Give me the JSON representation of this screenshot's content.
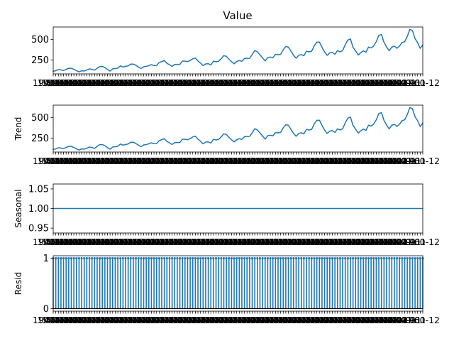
{
  "chart_data": [
    {
      "type": "line",
      "title": "Value",
      "ylabel": "",
      "xlabel": "",
      "x_start": "1949-01",
      "x_end": "1960-12",
      "x_frequency": "monthly",
      "x_tick_labels_note": "dense overlapping date tick labels, one per month",
      "y_ticks": [
        250,
        500
      ],
      "ylim": [
        80,
        650
      ],
      "series": [
        {
          "values": [
            112,
            118,
            132,
            129,
            121,
            135,
            148,
            148,
            136,
            119,
            104,
            118,
            115,
            126,
            141,
            135,
            125,
            149,
            170,
            170,
            158,
            133,
            114,
            140,
            145,
            150,
            178,
            163,
            172,
            178,
            199,
            199,
            184,
            162,
            146,
            166,
            171,
            180,
            193,
            181,
            183,
            218,
            230,
            242,
            209,
            191,
            172,
            194,
            196,
            196,
            236,
            235,
            229,
            243,
            264,
            272,
            237,
            211,
            180,
            201,
            204,
            188,
            235,
            227,
            234,
            264,
            302,
            293,
            259,
            229,
            203,
            229,
            242,
            233,
            267,
            269,
            270,
            315,
            364,
            347,
            312,
            274,
            237,
            278,
            284,
            277,
            317,
            313,
            318,
            374,
            413,
            405,
            355,
            306,
            271,
            306,
            315,
            301,
            356,
            348,
            355,
            422,
            465,
            467,
            404,
            347,
            305,
            336,
            340,
            318,
            362,
            348,
            363,
            435,
            491,
            505,
            404,
            359,
            310,
            337,
            360,
            342,
            406,
            396,
            420,
            472,
            548,
            559,
            463,
            407,
            362,
            405,
            417,
            391,
            419,
            461,
            472,
            535,
            622,
            606,
            508,
            461,
            390,
            432
          ]
        }
      ]
    },
    {
      "type": "line",
      "title": "",
      "ylabel": "Trend",
      "xlabel": "",
      "x_start": "1949-01",
      "x_end": "1960-12",
      "x_frequency": "monthly",
      "y_ticks": [
        250,
        500
      ],
      "ylim": [
        80,
        650
      ],
      "series": [
        {
          "values": [
            112,
            118,
            132,
            129,
            121,
            135,
            148,
            148,
            136,
            119,
            104,
            118,
            115,
            126,
            141,
            135,
            125,
            149,
            170,
            170,
            158,
            133,
            114,
            140,
            145,
            150,
            178,
            163,
            172,
            178,
            199,
            199,
            184,
            162,
            146,
            166,
            171,
            180,
            193,
            181,
            183,
            218,
            230,
            242,
            209,
            191,
            172,
            194,
            196,
            196,
            236,
            235,
            229,
            243,
            264,
            272,
            237,
            211,
            180,
            201,
            204,
            188,
            235,
            227,
            234,
            264,
            302,
            293,
            259,
            229,
            203,
            229,
            242,
            233,
            267,
            269,
            270,
            315,
            364,
            347,
            312,
            274,
            237,
            278,
            284,
            277,
            317,
            313,
            318,
            374,
            413,
            405,
            355,
            306,
            271,
            306,
            315,
            301,
            356,
            348,
            355,
            422,
            465,
            467,
            404,
            347,
            305,
            336,
            340,
            318,
            362,
            348,
            363,
            435,
            491,
            505,
            404,
            359,
            310,
            337,
            360,
            342,
            406,
            396,
            420,
            472,
            548,
            559,
            463,
            407,
            362,
            405,
            417,
            391,
            419,
            461,
            472,
            535,
            622,
            606,
            508,
            461,
            390,
            432
          ]
        }
      ]
    },
    {
      "type": "line",
      "title": "",
      "ylabel": "Seasonal",
      "xlabel": "",
      "x_start": "1949-01",
      "x_end": "1960-12",
      "x_frequency": "monthly",
      "y_ticks": [
        0.95,
        1.0,
        1.05
      ],
      "y_tick_labels": [
        "0.95",
        "1.00",
        "1.05"
      ],
      "ylim": [
        0.9375,
        1.0625
      ],
      "series": [
        {
          "values": "constant",
          "constant_value": 1.0,
          "count": 144
        }
      ]
    },
    {
      "type": "scatter",
      "title": "",
      "ylabel": "Resid",
      "xlabel": "",
      "x_start": "1949-01",
      "x_end": "1960-12",
      "x_frequency": "monthly",
      "y_ticks": [
        0,
        1
      ],
      "ylim": [
        -0.05,
        1.05
      ],
      "series": [
        {
          "values": "constant",
          "constant_value": 1.0,
          "count": 144,
          "style": "stem from 0"
        }
      ]
    }
  ],
  "tick_label_text": "1949-01",
  "tick_label_right_text": "1960-12",
  "colors": {
    "series": "#1f77b4",
    "axis": "#000000"
  }
}
